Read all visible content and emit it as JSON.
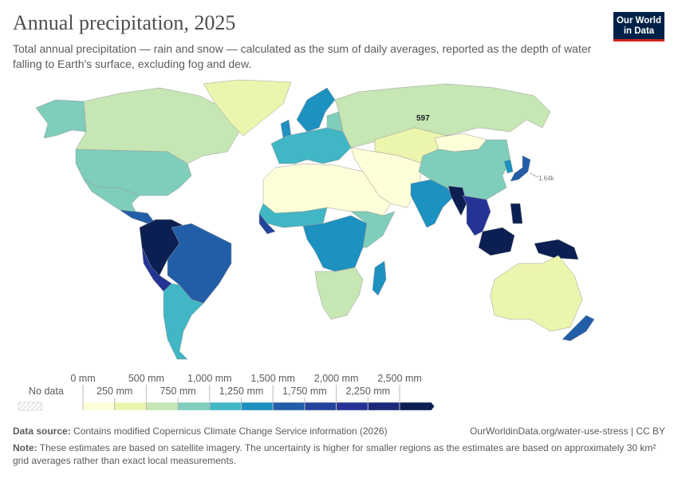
{
  "header": {
    "title": "Annual precipitation, 2025",
    "subtitle": "Total annual precipitation — rain and snow — calculated as the sum of daily averages, reported as the depth of water falling to Earth's surface, excluding fog and dew.",
    "logo_line1": "Our World",
    "logo_line2": "in Data"
  },
  "map": {
    "labels": {
      "russia": "597",
      "japan": "1.64k"
    },
    "colors": {
      "c0": "#fefed8",
      "c1": "#ecf5ad",
      "c2": "#c6e6b4",
      "c3": "#7fcdbb",
      "c4": "#41b6c4",
      "c5": "#1d91c0",
      "c6": "#225ea8",
      "c7": "#24449c",
      "c8": "#253494",
      "c9": "#1a2a78",
      "c10": "#0b1f52"
    }
  },
  "legend": {
    "no_data": "No data",
    "unit": "mm",
    "ticks_upper": [
      "0 mm",
      "500 mm",
      "1,000 mm",
      "1,500 mm",
      "2,000 mm",
      "2,500 mm"
    ],
    "ticks_lower": [
      "250 mm",
      "750 mm",
      "1,250 mm",
      "1,750 mm",
      "2,250 mm"
    ],
    "bins": [
      0,
      250,
      500,
      750,
      1000,
      1250,
      1500,
      1750,
      2000,
      2250,
      2500
    ],
    "colors": [
      "#fefed8",
      "#ecf5ad",
      "#c6e6b4",
      "#7fcdbb",
      "#41b6c4",
      "#1d91c0",
      "#225ea8",
      "#24449c",
      "#253494",
      "#1a2a78",
      "#0b1f52"
    ]
  },
  "footer": {
    "source_label": "Data source:",
    "source_text": "Contains modified Copernicus Climate Change Service information (2026)",
    "url": "OurWorldinData.org/water-use-stress | CC BY",
    "note_label": "Note:",
    "note_text": "These estimates are based on satellite imagery. The uncertainty is higher for smaller regions as the estimates are based on approximately 30 km² grid averages rather than exact local measurements."
  }
}
